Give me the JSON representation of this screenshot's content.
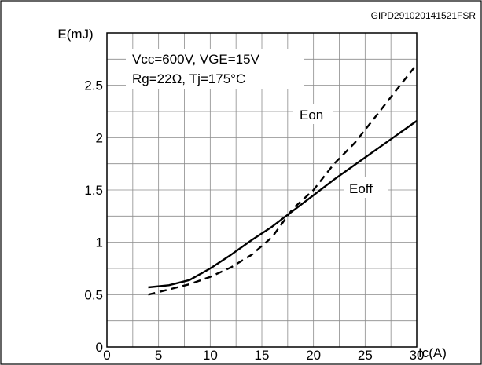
{
  "figure_code": "GIPD291020141521FSR",
  "chart_data": {
    "type": "line",
    "ylabel": "E(mJ)",
    "xlabel": "Ic(A)",
    "xlim": [
      0,
      30
    ],
    "ylim": [
      0,
      3
    ],
    "x_ticks": [
      0,
      5,
      10,
      15,
      20,
      25,
      30
    ],
    "x_tick_labels": [
      "0",
      "5",
      "10",
      "15",
      "20",
      "25",
      "30"
    ],
    "y_ticks": [
      0,
      0.5,
      1,
      1.5,
      2,
      2.5
    ],
    "y_tick_labels": [
      "0",
      "0.5",
      "1",
      "1.5",
      "2",
      "2.5"
    ],
    "grid": true,
    "legend": "none",
    "conditions": [
      "Vcc=600V,  VGE=15V",
      "Rg=22Ω,  Tj=175°C"
    ],
    "series": [
      {
        "name": "Eon",
        "style": "dashed",
        "color": "#000000",
        "x": [
          4,
          6,
          8,
          10,
          12,
          14,
          16,
          18,
          20,
          22,
          24,
          26,
          28,
          30
        ],
        "y": [
          0.5,
          0.55,
          0.6,
          0.67,
          0.76,
          0.88,
          1.05,
          1.32,
          1.5,
          1.75,
          1.95,
          2.2,
          2.45,
          2.7
        ]
      },
      {
        "name": "Eoff",
        "style": "solid",
        "color": "#000000",
        "x": [
          4,
          6,
          8,
          10,
          12,
          14,
          16,
          18,
          20,
          22,
          24,
          26,
          28,
          30
        ],
        "y": [
          0.57,
          0.59,
          0.64,
          0.75,
          0.88,
          1.02,
          1.15,
          1.3,
          1.45,
          1.6,
          1.74,
          1.88,
          2.02,
          2.16
        ]
      }
    ]
  }
}
